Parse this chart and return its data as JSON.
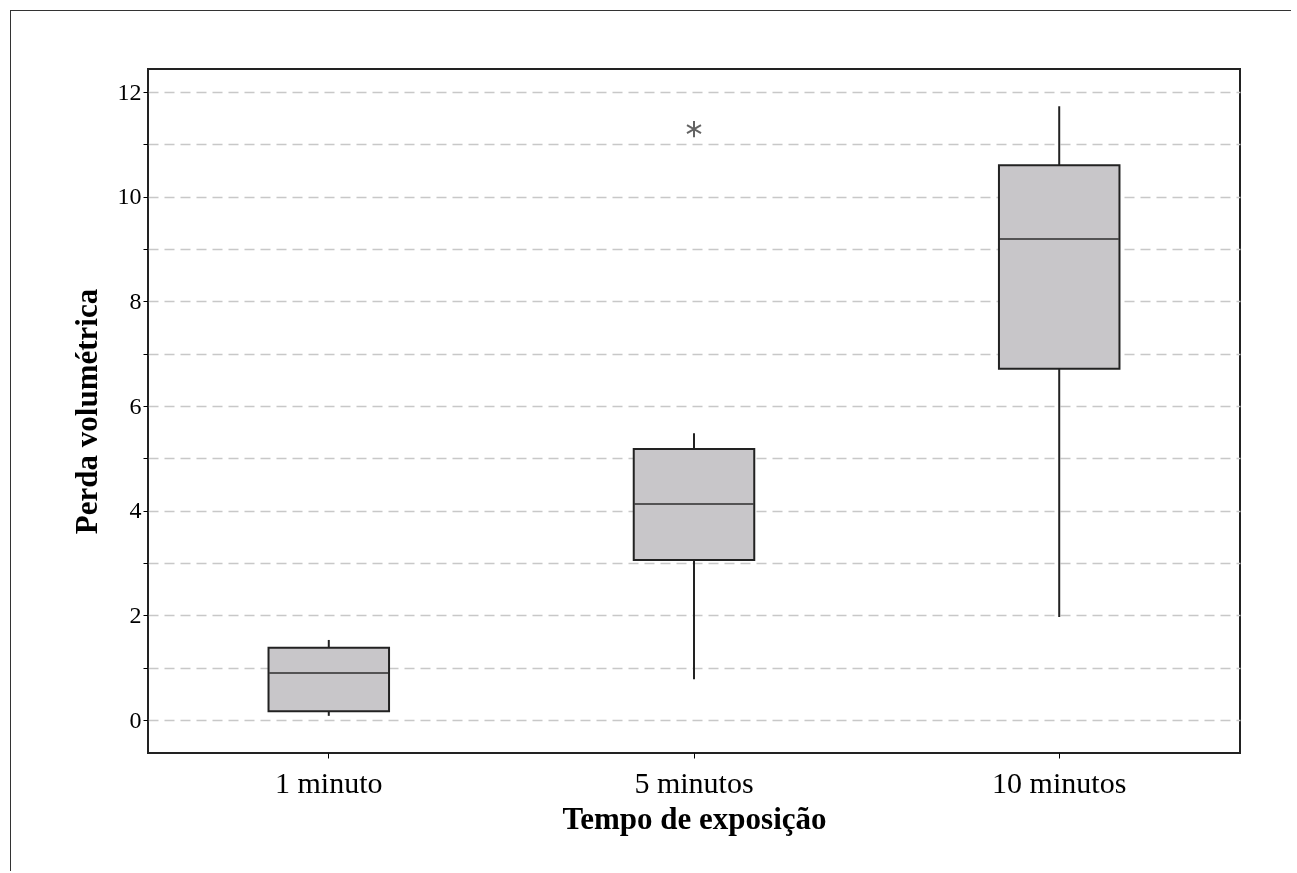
{
  "chart_data": {
    "type": "box",
    "xlabel": "Tempo de exposição",
    "ylabel": "Perda  volumétrica",
    "categories": [
      "1 minuto",
      "5 minutos",
      "10 minutos"
    ],
    "boxes": [
      {
        "low": 0.08,
        "q1": 0.17,
        "median": 0.9,
        "q3": 1.38,
        "high": 1.53
      },
      {
        "low": 0.78,
        "q1": 3.06,
        "median": 4.13,
        "q3": 5.18,
        "high": 5.48,
        "outliers": [
          11.29
        ]
      },
      {
        "low": 1.97,
        "q1": 6.71,
        "median": 9.19,
        "q3": 10.6,
        "high": 11.73
      }
    ],
    "color": "#c8c6c9",
    "marker": "star",
    "ylim": [
      -0.63,
      12.44
    ],
    "yticks": [
      0,
      {
        "value": 1,
        "label": null
      },
      2,
      {
        "value": 3,
        "label": null
      },
      4,
      {
        "value": 5,
        "label": null
      },
      6,
      {
        "value": 7,
        "label": null
      },
      8,
      {
        "value": 9,
        "label": null
      },
      10,
      {
        "value": 11,
        "label": null
      },
      12
    ],
    "grid": true
  }
}
